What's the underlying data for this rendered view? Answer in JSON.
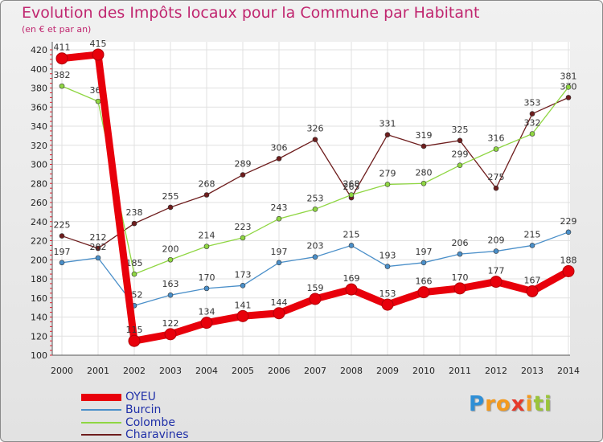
{
  "title": "Evolution des Impôts locaux pour la Commune par Habitant",
  "subtitle": "(en € et par an)",
  "logo": {
    "letters": [
      "P",
      "r",
      "o",
      "x",
      "i",
      "t",
      "i"
    ],
    "colors": [
      "#2f8fd6",
      "#f39a1f",
      "#f39a1f",
      "#e63a2a",
      "#f39a1f",
      "#9ac43a",
      "#9ac43a"
    ]
  },
  "chart_data": {
    "type": "line",
    "title": "Evolution des Impôts locaux pour la Commune par Habitant",
    "ylabel": "(en € et par an)",
    "xlabel": "",
    "x": [
      "2000",
      "2001",
      "2002",
      "2003",
      "2004",
      "2005",
      "2006",
      "2007",
      "2008",
      "2009",
      "2010",
      "2011",
      "2012",
      "2013",
      "2014"
    ],
    "ylim": [
      100,
      420
    ],
    "yticks": [
      "100",
      "120",
      "140",
      "160",
      "180",
      "200",
      "220",
      "240",
      "260",
      "280",
      "300",
      "320",
      "340",
      "360",
      "380",
      "400",
      "420"
    ],
    "grid": true,
    "legend": "bottom-left",
    "series": [
      {
        "name": "OYEU",
        "color": "#e8000b",
        "values": [
          411,
          415,
          115,
          122,
          134,
          141,
          144,
          159,
          169,
          153,
          166,
          170,
          177,
          167,
          188
        ],
        "labels": [
          "411",
          "415",
          "115",
          "122",
          "134",
          "141",
          "144",
          "159",
          "169",
          "153",
          "166",
          "170",
          "177",
          "167",
          "188"
        ]
      },
      {
        "name": "Burcin",
        "color": "#4a8fc9",
        "values": [
          197,
          202,
          152,
          163,
          170,
          173,
          197,
          203,
          215,
          193,
          197,
          206,
          209,
          215,
          229
        ],
        "labels": [
          "197",
          "202",
          "152",
          "163",
          "170",
          "173",
          "197",
          "203",
          "215",
          "193",
          "197",
          "206",
          "209",
          "215",
          "229"
        ]
      },
      {
        "name": "Colombe",
        "color": "#8fd642",
        "values": [
          382,
          366,
          185,
          200,
          214,
          223,
          243,
          253,
          268,
          279,
          280,
          299,
          316,
          332,
          381
        ],
        "labels": [
          "382",
          "366",
          "185",
          "200",
          "214",
          "223",
          "243",
          "253",
          "268",
          "279",
          "280",
          "299",
          "316",
          "332",
          "381"
        ]
      },
      {
        "name": "Charavines",
        "color": "#6e1d1d",
        "values": [
          225,
          212,
          238,
          255,
          268,
          289,
          306,
          326,
          265,
          331,
          319,
          325,
          275,
          353,
          370
        ],
        "labels": [
          "225",
          "212",
          "238",
          "255",
          "268",
          "289",
          "306",
          "326",
          "265",
          "331",
          "319",
          "325",
          "275",
          "353",
          "370"
        ]
      }
    ]
  }
}
